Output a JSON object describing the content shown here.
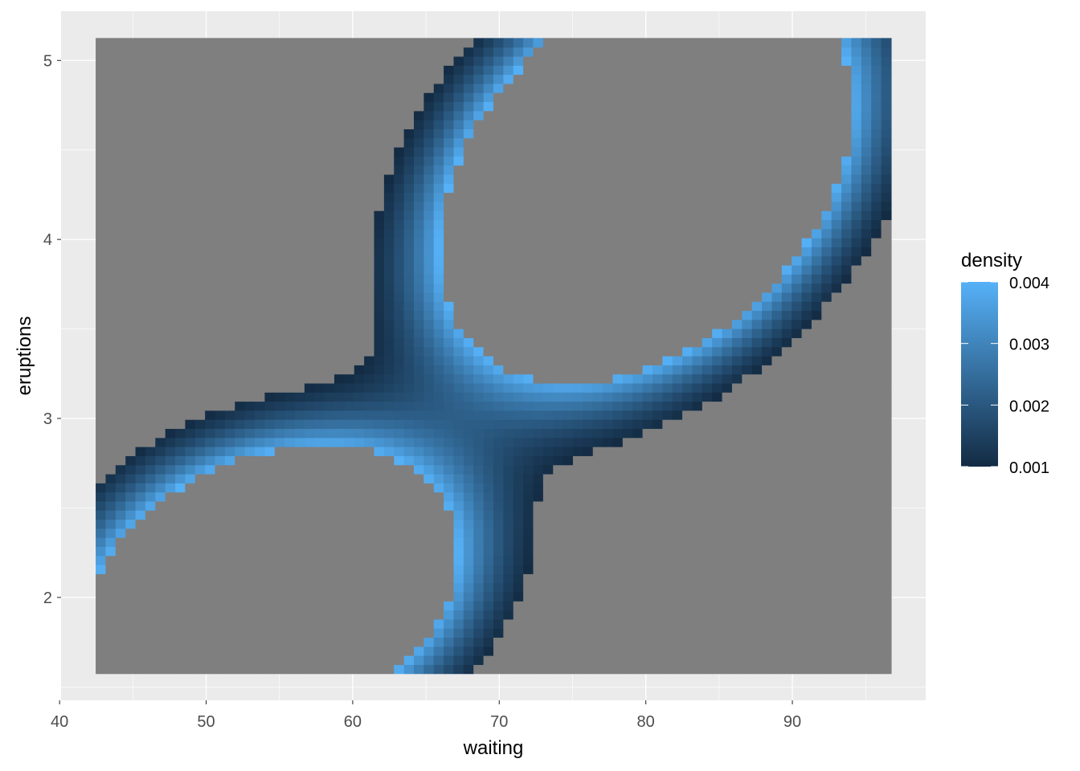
{
  "chart_data": {
    "type": "heatmap",
    "title": "",
    "xlabel": "waiting",
    "ylabel": "eruptions",
    "xlim": [
      40.1,
      99.1
    ],
    "ylim": [
      1.425,
      5.275
    ],
    "x_ticks": [
      40,
      50,
      60,
      70,
      80,
      90
    ],
    "y_ticks": [
      2,
      3,
      4,
      5
    ],
    "x_tick_labels": [
      "40",
      "50",
      "60",
      "70",
      "80",
      "90"
    ],
    "y_tick_labels": [
      "2",
      "3",
      "4",
      "5"
    ],
    "grid": true,
    "raster": {
      "x_range": [
        42.8,
        96.4
      ],
      "y_range": [
        1.6,
        5.1
      ],
      "nx": 80,
      "ny": 70
    },
    "density_model": {
      "description_of_fill": "2D kernel density estimate",
      "components": [
        {
          "weight": 0.36,
          "mean": [
            54.5,
            2.04
          ],
          "sd": [
            7.4,
            0.47
          ],
          "corr": 0.25
        },
        {
          "weight": 0.64,
          "mean": [
            80.0,
            4.35
          ],
          "sd": [
            7.4,
            0.6
          ],
          "corr": 0.35
        }
      ]
    },
    "legend": {
      "title": "density",
      "position": "right",
      "limits": [
        0.001,
        0.004
      ],
      "breaks": [
        0.004,
        0.003,
        0.002,
        0.001
      ],
      "labels": [
        "0.004",
        "0.003",
        "0.002",
        "0.001"
      ]
    },
    "colors": {
      "low": "#132B43",
      "high": "#56B1F7",
      "na": "#7F7F7F",
      "panel": "#EBEBEB",
      "grid": "#FFFFFF"
    }
  }
}
